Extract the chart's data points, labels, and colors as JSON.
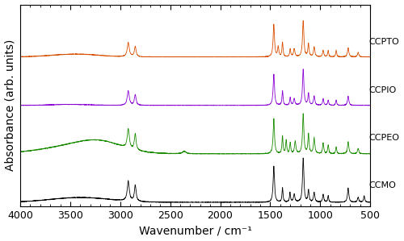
{
  "xlabel": "Wavenumber / cm⁻¹",
  "ylabel": "Absorbance (arb. units)",
  "xlim": [
    4000,
    500
  ],
  "labels": [
    "CCPTO",
    "CCPIO",
    "CCPEO",
    "CCMO"
  ],
  "colors": [
    "#d94f00",
    "#8b00d4",
    "#1a8c00",
    "#000000"
  ],
  "offsets": [
    0.72,
    0.48,
    0.24,
    0.0
  ],
  "scale": [
    0.18,
    0.18,
    0.2,
    0.22
  ],
  "background_color": "#ffffff",
  "tick_fontsize": 9,
  "label_fontsize": 10
}
